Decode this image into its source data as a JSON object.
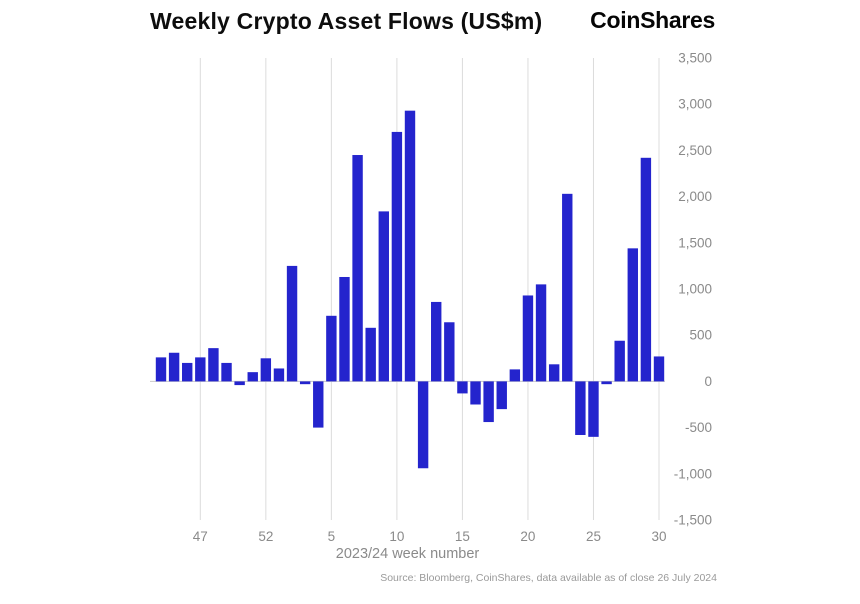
{
  "header": {
    "title": "Weekly Crypto Asset Flows (US$m)",
    "logo": "CoinShares"
  },
  "chart_data": {
    "type": "bar",
    "title": "Weekly Crypto Asset Flows (US$m)",
    "xlabel": "2023/24 week number",
    "ylabel": "",
    "ylim": [
      -1500,
      3500
    ],
    "ytick_step": 500,
    "legend": "none",
    "grid": "vertical gridlines at labeled week ticks, horizontal zero line",
    "bar_color": "#2424cd",
    "gridline_color": "#dcdcdc",
    "zero_line_color": "#c8c8c8",
    "axis_text_color": "#8a8a8a",
    "categories": [
      "44",
      "45",
      "46",
      "47",
      "48",
      "49",
      "50",
      "51",
      "52",
      "1",
      "2",
      "3",
      "4",
      "5",
      "6",
      "7",
      "8",
      "9",
      "10",
      "11",
      "12",
      "13",
      "14",
      "15",
      "16",
      "17",
      "18",
      "19",
      "20",
      "21",
      "22",
      "23",
      "24",
      "25",
      "26",
      "27",
      "28",
      "29",
      "30"
    ],
    "values": [
      260,
      310,
      200,
      260,
      360,
      200,
      -40,
      100,
      250,
      140,
      1250,
      -30,
      -500,
      710,
      1130,
      2450,
      580,
      1840,
      2700,
      2930,
      -940,
      860,
      640,
      -130,
      -250,
      -440,
      -300,
      130,
      930,
      1050,
      185,
      2030,
      -580,
      -600,
      -30,
      440,
      1440,
      2420,
      270
    ],
    "x_tick_labels": [
      "47",
      "52",
      "5",
      "10",
      "15",
      "20",
      "25",
      "30"
    ]
  },
  "footer": {
    "source": "Source: Bloomberg, CoinShares, data available as of close 26 July 2024"
  }
}
